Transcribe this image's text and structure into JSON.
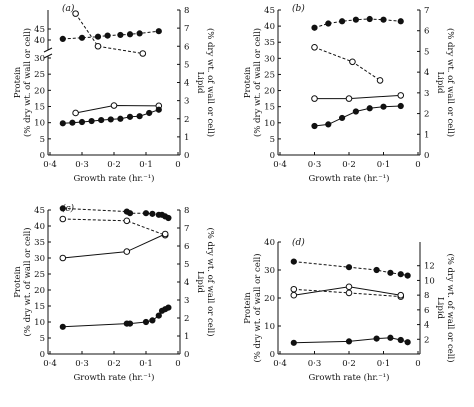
{
  "chart_data": [
    {
      "type": "line",
      "panel_label": "(a)",
      "xlabel": "Growth rate (hr.⁻¹)",
      "ylabel_left_line1": "Protein",
      "ylabel_left_line2": "(% dry wt. of wall or cell)",
      "ylabel_right_line1": "Lipid",
      "ylabel_right_line2": "(% dry wt. of wall or cell)",
      "x_direction": "reversed",
      "xlim": [
        0.4,
        0
      ],
      "xticks": [
        0.4,
        0.3,
        0.2,
        0.1,
        0
      ],
      "xtick_labels": [
        "0·4",
        "0·3",
        "0·2",
        "0·1",
        "0"
      ],
      "y_break": {
        "left_axis": [
          30,
          35
        ]
      },
      "ylim_left_lower": [
        0,
        30
      ],
      "yticks_left_lower": [
        0,
        5,
        10,
        15,
        20,
        25,
        30
      ],
      "ylim_left_upper": [
        35,
        45
      ],
      "yticks_left_upper": [
        40,
        45
      ],
      "ytick_labels_left": [
        "0",
        "5",
        "10",
        "15",
        "20",
        "25",
        "30",
        "40",
        "45"
      ],
      "ylim_right": [
        0,
        8
      ],
      "yticks_right": [
        0,
        1,
        2,
        3,
        4,
        5,
        6,
        7,
        8
      ],
      "ytick_labels_right": [
        "0",
        "1",
        "2",
        "3",
        "4",
        "5",
        "6",
        "7",
        "8"
      ],
      "series": [
        {
          "marker": "filled",
          "line": "dashed",
          "axis": "left",
          "x": [
            0.36,
            0.3,
            0.25,
            0.22,
            0.18,
            0.15,
            0.12,
            0.06
          ],
          "y": [
            40.5,
            41.0,
            41.5,
            42.0,
            42.3,
            42.6,
            43.0,
            44.0
          ]
        },
        {
          "marker": "open",
          "line": "dashed",
          "axis": "right",
          "x": [
            0.32,
            0.25,
            0.11
          ],
          "y": [
            7.8,
            6.0,
            5.6
          ]
        },
        {
          "marker": "open",
          "line": "solid",
          "axis": "left",
          "x": [
            0.32,
            0.2,
            0.06
          ],
          "y": [
            13,
            15.3,
            15.2
          ]
        },
        {
          "marker": "filled",
          "line": "solid",
          "axis": "left",
          "x": [
            0.36,
            0.33,
            0.3,
            0.27,
            0.24,
            0.21,
            0.18,
            0.15,
            0.12,
            0.09,
            0.06
          ],
          "y": [
            9.8,
            10.0,
            10.2,
            10.5,
            10.8,
            11.0,
            11.2,
            11.8,
            12.0,
            13.0,
            14.0
          ]
        }
      ]
    },
    {
      "type": "line",
      "panel_label": "(b)",
      "xlabel": "Growth rate (hr.⁻¹)",
      "ylabel_left_line1": "Protein",
      "ylabel_left_line2": "(% dry wt. of wall or cell)",
      "ylabel_right_line1": "Lipid",
      "ylabel_right_line2": "(% dry wt. of wall or cell)",
      "x_direction": "reversed",
      "xlim": [
        0.4,
        0
      ],
      "xticks": [
        0.4,
        0.3,
        0.2,
        0.1,
        0
      ],
      "xtick_labels": [
        "0·4",
        "0·3",
        "0·2",
        "0·1",
        "0"
      ],
      "ylim_left": [
        0,
        45
      ],
      "yticks_left": [
        0,
        5,
        10,
        15,
        20,
        25,
        30,
        35,
        40,
        45
      ],
      "ytick_labels_left": [
        "0",
        "5",
        "10",
        "15",
        "20",
        "25",
        "30",
        "35",
        "40",
        "45"
      ],
      "ylim_right": [
        0,
        7
      ],
      "yticks_right": [
        0,
        1,
        2,
        3,
        4,
        5,
        6,
        7
      ],
      "ytick_labels_right": [
        "0",
        "1",
        "2",
        "3",
        "4",
        "5",
        "6",
        "7"
      ],
      "series": [
        {
          "marker": "filled",
          "line": "dashed",
          "axis": "left",
          "x": [
            0.3,
            0.26,
            0.22,
            0.18,
            0.14,
            0.1,
            0.05
          ],
          "y": [
            39.5,
            40.8,
            41.5,
            42.0,
            42.2,
            42.0,
            41.5
          ]
        },
        {
          "marker": "open",
          "line": "dashed",
          "axis": "right",
          "x": [
            0.3,
            0.19,
            0.11
          ],
          "y": [
            5.2,
            4.5,
            3.6
          ]
        },
        {
          "marker": "open",
          "line": "solid",
          "axis": "left",
          "x": [
            0.3,
            0.2,
            0.05
          ],
          "y": [
            17.5,
            17.5,
            18.5
          ]
        },
        {
          "marker": "filled",
          "line": "solid",
          "axis": "left",
          "x": [
            0.3,
            0.26,
            0.22,
            0.18,
            0.14,
            0.1,
            0.05
          ],
          "y": [
            9.0,
            9.5,
            11.5,
            13.5,
            14.5,
            15.0,
            15.2
          ]
        }
      ]
    },
    {
      "type": "line",
      "panel_label": "(c)",
      "xlabel": "Growth rate (hr.⁻¹)",
      "ylabel_left_line1": "Protein",
      "ylabel_left_line2": "(% dry wt. of wall or cell)",
      "ylabel_right_line1": "Lipid",
      "ylabel_right_line2": "(% dry wt. of wall or cell)",
      "x_direction": "reversed",
      "xlim": [
        0.4,
        0
      ],
      "xticks": [
        0.4,
        0.3,
        0.2,
        0.1,
        0
      ],
      "xtick_labels": [
        "0·4",
        "0·3",
        "0·2",
        "0·1",
        "0"
      ],
      "ylim_left": [
        0,
        45
      ],
      "yticks_left": [
        0,
        5,
        10,
        15,
        20,
        25,
        30,
        35,
        40,
        45
      ],
      "ytick_labels_left": [
        "0",
        "5",
        "10",
        "15",
        "20",
        "25",
        "30",
        "35",
        "40",
        "45"
      ],
      "ylim_right": [
        0,
        8
      ],
      "yticks_right": [
        0,
        1,
        2,
        3,
        4,
        5,
        6,
        7,
        8
      ],
      "ytick_labels_right": [
        "0",
        "1",
        "2",
        "3",
        "4",
        "5",
        "6",
        "7",
        "8"
      ],
      "series": [
        {
          "marker": "filled",
          "line": "dashed",
          "axis": "left",
          "x": [
            0.36,
            0.16,
            0.15,
            0.1,
            0.08,
            0.06,
            0.05,
            0.04,
            0.03
          ],
          "y": [
            45.5,
            44.5,
            44.0,
            44.0,
            43.8,
            43.5,
            43.5,
            43.0,
            42.5
          ]
        },
        {
          "marker": "open",
          "line": "dashed",
          "axis": "right",
          "x": [
            0.36,
            0.16,
            0.04
          ],
          "y": [
            7.5,
            7.4,
            6.6
          ]
        },
        {
          "marker": "open",
          "line": "solid",
          "axis": "left",
          "x": [
            0.36,
            0.16,
            0.04
          ],
          "y": [
            30,
            32,
            37.5
          ]
        },
        {
          "marker": "filled",
          "line": "solid",
          "axis": "left",
          "x": [
            0.36,
            0.16,
            0.15,
            0.1,
            0.08,
            0.06,
            0.05,
            0.04,
            0.03
          ],
          "y": [
            8.5,
            9.5,
            9.5,
            10.0,
            10.5,
            12.0,
            13.5,
            14.0,
            14.5
          ]
        }
      ]
    },
    {
      "type": "line",
      "panel_label": "(d)",
      "xlabel": "Growth rate (hr.⁻¹)",
      "ylabel_left_line1": "Protein",
      "ylabel_left_line2": "(% dry wt. of wall or cell)",
      "ylabel_right_line1": "Lipid",
      "ylabel_right_line2": "(% dry wt. of wall or cell)",
      "x_direction": "reversed",
      "xlim": [
        0.4,
        0
      ],
      "xticks": [
        0.4,
        0.3,
        0.2,
        0.1,
        0
      ],
      "xtick_labels": [
        "0·4",
        "0·3",
        "0·2",
        "0·1",
        "0"
      ],
      "ylim_left": [
        0,
        40
      ],
      "yticks_left": [
        0,
        10,
        20,
        30,
        40
      ],
      "ytick_labels_left": [
        "0",
        "10",
        "20",
        "30",
        "40"
      ],
      "ylim_right": [
        0,
        14
      ],
      "yticks_right": [
        2,
        4,
        6,
        8,
        10,
        12
      ],
      "ytick_labels_right": [
        "2",
        "4",
        "6",
        "8",
        "10",
        "12"
      ],
      "series": [
        {
          "marker": "filled",
          "line": "dashed",
          "axis": "left",
          "x": [
            0.36,
            0.2,
            0.12,
            0.08,
            0.05,
            0.03
          ],
          "y": [
            33,
            31,
            30,
            29,
            28.5,
            28
          ]
        },
        {
          "marker": "open",
          "line": "dashed",
          "axis": "right",
          "x": [
            0.36,
            0.2,
            0.05
          ],
          "y": [
            8.8,
            8.3,
            7.8
          ]
        },
        {
          "marker": "open",
          "line": "solid",
          "axis": "left",
          "x": [
            0.36,
            0.2,
            0.05
          ],
          "y": [
            21,
            24,
            21
          ]
        },
        {
          "marker": "filled",
          "line": "solid",
          "axis": "left",
          "x": [
            0.36,
            0.2,
            0.12,
            0.08,
            0.05,
            0.03
          ],
          "y": [
            4.0,
            4.5,
            5.5,
            5.8,
            5.0,
            4.2
          ]
        }
      ]
    }
  ]
}
